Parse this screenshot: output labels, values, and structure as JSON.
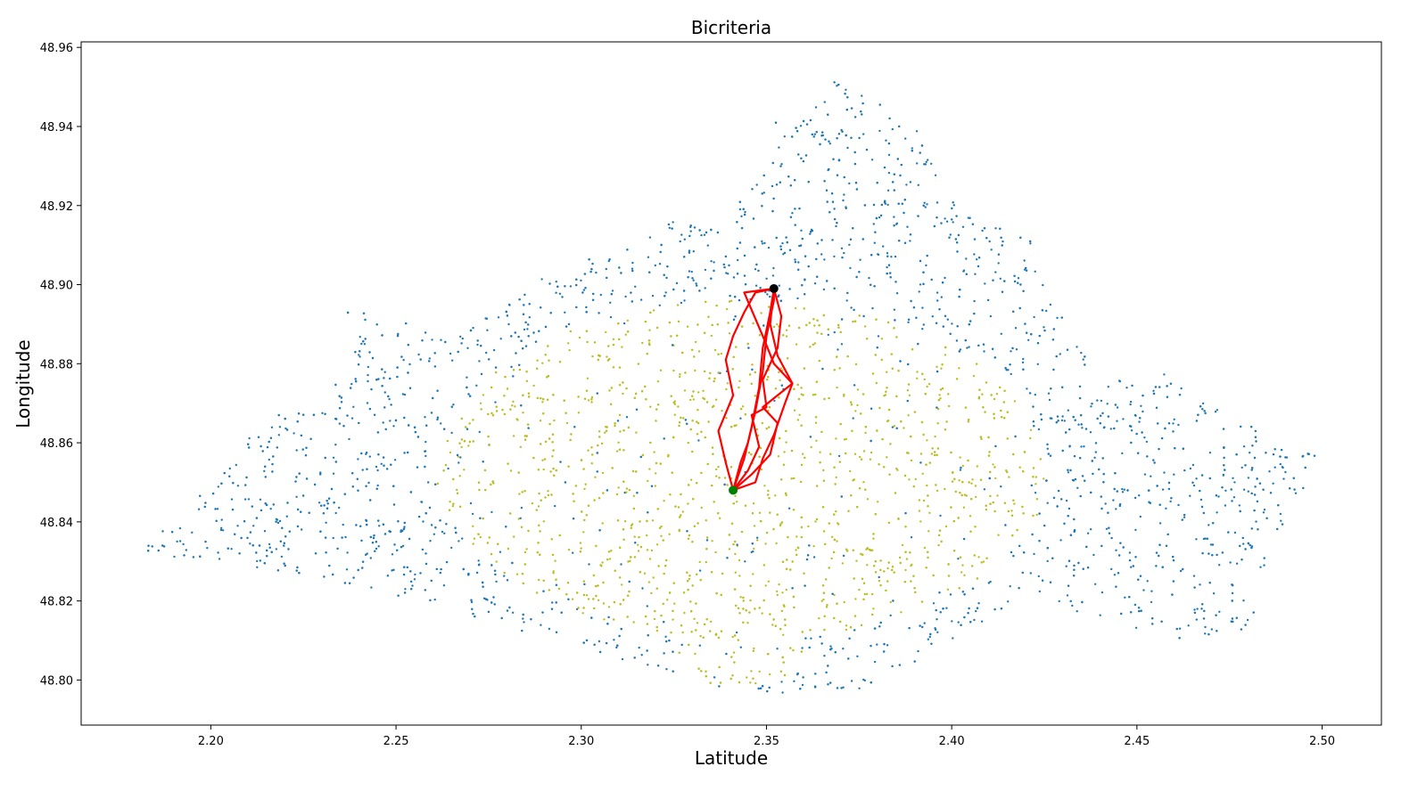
{
  "chart_data": {
    "type": "scatter",
    "title": "Bicriteria",
    "xlabel": "Latitude",
    "ylabel": "Longitude",
    "xlim": [
      2.165,
      2.516
    ],
    "ylim": [
      48.7886,
      48.9614
    ],
    "xticks": [
      "2.20",
      "2.25",
      "2.30",
      "2.35",
      "2.40",
      "2.45",
      "2.50"
    ],
    "yticks": [
      "48.80",
      "48.82",
      "48.84",
      "48.86",
      "48.88",
      "48.90",
      "48.92",
      "48.94",
      "48.96"
    ],
    "grid": false,
    "legend": "none",
    "colors": {
      "outer_nodes": "#1f77b4",
      "inner_nodes": "#bcbd22",
      "path": "#ff0000",
      "source": "#008000",
      "target": "#000000"
    },
    "outer_region": {
      "hull": [
        [
          2.18,
          48.832
        ],
        [
          2.195,
          48.846
        ],
        [
          2.215,
          48.866
        ],
        [
          2.24,
          48.878
        ],
        [
          2.235,
          48.896
        ],
        [
          2.265,
          48.886
        ],
        [
          2.285,
          48.9
        ],
        [
          2.31,
          48.91
        ],
        [
          2.33,
          48.918
        ],
        [
          2.345,
          48.922
        ],
        [
          2.35,
          48.94
        ],
        [
          2.368,
          48.952
        ],
        [
          2.39,
          48.94
        ],
        [
          2.398,
          48.922
        ],
        [
          2.42,
          48.912
        ],
        [
          2.428,
          48.894
        ],
        [
          2.44,
          48.88
        ],
        [
          2.458,
          48.878
        ],
        [
          2.475,
          48.866
        ],
        [
          2.5,
          48.856
        ],
        [
          2.485,
          48.832
        ],
        [
          2.48,
          48.812
        ],
        [
          2.46,
          48.81
        ],
        [
          2.44,
          48.816
        ],
        [
          2.42,
          48.82
        ],
        [
          2.4,
          48.81
        ],
        [
          2.378,
          48.798
        ],
        [
          2.36,
          48.796
        ],
        [
          2.34,
          48.797
        ],
        [
          2.3,
          48.808
        ],
        [
          2.26,
          48.818
        ],
        [
          2.23,
          48.826
        ],
        [
          2.2,
          48.83
        ]
      ]
    },
    "inner_region": {
      "center": [
        2.343,
        48.853
      ],
      "radii": [
        0.082,
        0.043
      ],
      "south_lobe": [
        2.343,
        48.806
      ]
    },
    "source_point": {
      "x": 2.341,
      "y": 48.848
    },
    "target_point": {
      "x": 2.352,
      "y": 48.899
    },
    "paths": [
      [
        [
          2.341,
          48.848
        ],
        [
          2.344,
          48.856
        ],
        [
          2.346,
          48.864
        ],
        [
          2.348,
          48.874
        ],
        [
          2.349,
          48.884
        ],
        [
          2.351,
          48.893
        ],
        [
          2.352,
          48.899
        ]
      ],
      [
        [
          2.341,
          48.848
        ],
        [
          2.343,
          48.855
        ],
        [
          2.345,
          48.86
        ],
        [
          2.347,
          48.868
        ],
        [
          2.349,
          48.878
        ],
        [
          2.35,
          48.887
        ],
        [
          2.352,
          48.896
        ],
        [
          2.352,
          48.899
        ]
      ],
      [
        [
          2.341,
          48.848
        ],
        [
          2.347,
          48.85
        ],
        [
          2.349,
          48.856
        ],
        [
          2.352,
          48.862
        ],
        [
          2.355,
          48.87
        ],
        [
          2.357,
          48.875
        ],
        [
          2.352,
          48.88
        ],
        [
          2.349,
          48.887
        ],
        [
          2.344,
          48.898
        ],
        [
          2.352,
          48.899
        ]
      ],
      [
        [
          2.341,
          48.848
        ],
        [
          2.339,
          48.855
        ],
        [
          2.337,
          48.863
        ],
        [
          2.341,
          48.872
        ],
        [
          2.339,
          48.881
        ],
        [
          2.341,
          48.887
        ],
        [
          2.344,
          48.893
        ],
        [
          2.347,
          48.898
        ],
        [
          2.352,
          48.899
        ]
      ],
      [
        [
          2.341,
          48.848
        ],
        [
          2.346,
          48.852
        ],
        [
          2.351,
          48.857
        ],
        [
          2.353,
          48.865
        ],
        [
          2.349,
          48.869
        ],
        [
          2.357,
          48.875
        ],
        [
          2.353,
          48.882
        ],
        [
          2.351,
          48.89
        ],
        [
          2.352,
          48.899
        ]
      ],
      [
        [
          2.341,
          48.848
        ],
        [
          2.345,
          48.853
        ],
        [
          2.348,
          48.859
        ],
        [
          2.346,
          48.867
        ],
        [
          2.35,
          48.869
        ],
        [
          2.349,
          48.876
        ],
        [
          2.353,
          48.884
        ],
        [
          2.354,
          48.892
        ],
        [
          2.352,
          48.899
        ]
      ]
    ]
  }
}
